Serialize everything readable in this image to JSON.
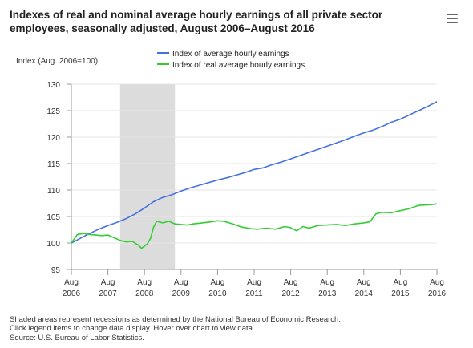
{
  "title": "Indexes of real and nominal average hourly earnings of all private sector employees, seasonally adjusted, August 2006–August 2016",
  "menu": {
    "icon": "hamburger-menu-icon"
  },
  "footnotes": [
    "Shaded areas represent recessions as determined by the National Bureau of Economic Research.",
    "Click legend items to change data display. Hover over chart to view data.",
    "Source: U.S. Bureau of Labor Statistics."
  ],
  "chart_data": {
    "type": "line",
    "title": "Indexes of real and nominal average hourly earnings of all private sector employees, seasonally adjusted, August 2006–August 2016",
    "ylabel": "Index (Aug. 2006=100)",
    "xlabel": "",
    "ylim": [
      95,
      130
    ],
    "yticks": [
      95,
      100,
      105,
      110,
      115,
      120,
      125,
      130
    ],
    "xlim": [
      "2006-08",
      "2016-08"
    ],
    "xticks": [
      {
        "month": "Aug",
        "year": "2006"
      },
      {
        "month": "Aug",
        "year": "2007"
      },
      {
        "month": "Aug",
        "year": "2008"
      },
      {
        "month": "Aug",
        "year": "2009"
      },
      {
        "month": "Aug",
        "year": "2010"
      },
      {
        "month": "Aug",
        "year": "2011"
      },
      {
        "month": "Aug",
        "year": "2012"
      },
      {
        "month": "Aug",
        "year": "2013"
      },
      {
        "month": "Aug",
        "year": "2014"
      },
      {
        "month": "Aug",
        "year": "2015"
      },
      {
        "month": "Aug",
        "year": "2016"
      }
    ],
    "grid": "horizontal",
    "legend_position": "top-center",
    "recession": {
      "start": "2007-12",
      "end": "2009-06"
    },
    "series": [
      {
        "name": "Index of average hourly earnings",
        "color": "#4572e0",
        "points": [
          [
            "2006-08",
            100.0
          ],
          [
            "2006-11",
            100.9
          ],
          [
            "2007-02",
            101.8
          ],
          [
            "2007-05",
            102.6
          ],
          [
            "2007-08",
            103.3
          ],
          [
            "2007-11",
            103.9
          ],
          [
            "2008-02",
            104.6
          ],
          [
            "2008-05",
            105.5
          ],
          [
            "2008-08",
            106.6
          ],
          [
            "2008-11",
            107.8
          ],
          [
            "2009-02",
            108.6
          ],
          [
            "2009-05",
            109.1
          ],
          [
            "2009-08",
            109.8
          ],
          [
            "2009-11",
            110.4
          ],
          [
            "2010-02",
            110.9
          ],
          [
            "2010-05",
            111.4
          ],
          [
            "2010-08",
            111.9
          ],
          [
            "2010-11",
            112.3
          ],
          [
            "2011-02",
            112.8
          ],
          [
            "2011-05",
            113.3
          ],
          [
            "2011-08",
            113.9
          ],
          [
            "2011-11",
            114.2
          ],
          [
            "2012-02",
            114.8
          ],
          [
            "2012-05",
            115.3
          ],
          [
            "2012-08",
            115.9
          ],
          [
            "2012-11",
            116.5
          ],
          [
            "2013-02",
            117.1
          ],
          [
            "2013-05",
            117.7
          ],
          [
            "2013-08",
            118.3
          ],
          [
            "2013-11",
            118.9
          ],
          [
            "2014-02",
            119.5
          ],
          [
            "2014-05",
            120.2
          ],
          [
            "2014-08",
            120.8
          ],
          [
            "2014-11",
            121.3
          ],
          [
            "2015-02",
            122.0
          ],
          [
            "2015-05",
            122.8
          ],
          [
            "2015-08",
            123.4
          ],
          [
            "2015-11",
            124.2
          ],
          [
            "2016-02",
            125.0
          ],
          [
            "2016-05",
            125.8
          ],
          [
            "2016-08",
            126.7
          ]
        ]
      },
      {
        "name": "Index of real average hourly earnings",
        "color": "#33cc33",
        "points": [
          [
            "2006-08",
            100.0
          ],
          [
            "2006-10",
            101.6
          ],
          [
            "2006-12",
            101.8
          ],
          [
            "2007-02",
            101.6
          ],
          [
            "2007-04",
            101.5
          ],
          [
            "2007-06",
            101.4
          ],
          [
            "2007-08",
            101.5
          ],
          [
            "2007-10",
            101.0
          ],
          [
            "2007-12",
            100.5
          ],
          [
            "2008-02",
            100.2
          ],
          [
            "2008-04",
            100.3
          ],
          [
            "2008-06",
            99.6
          ],
          [
            "2008-07",
            99.0
          ],
          [
            "2008-08",
            99.4
          ],
          [
            "2008-09",
            99.9
          ],
          [
            "2008-10",
            100.9
          ],
          [
            "2008-11",
            103.0
          ],
          [
            "2008-12",
            104.1
          ],
          [
            "2009-02",
            103.8
          ],
          [
            "2009-04",
            104.1
          ],
          [
            "2009-06",
            103.6
          ],
          [
            "2009-08",
            103.5
          ],
          [
            "2009-10",
            103.4
          ],
          [
            "2009-12",
            103.6
          ],
          [
            "2010-03",
            103.8
          ],
          [
            "2010-06",
            104.0
          ],
          [
            "2010-08",
            104.2
          ],
          [
            "2010-10",
            104.1
          ],
          [
            "2011-01",
            103.6
          ],
          [
            "2011-04",
            103.0
          ],
          [
            "2011-07",
            102.7
          ],
          [
            "2011-09",
            102.6
          ],
          [
            "2011-12",
            102.8
          ],
          [
            "2012-03",
            102.6
          ],
          [
            "2012-06",
            103.1
          ],
          [
            "2012-08",
            102.9
          ],
          [
            "2012-10",
            102.3
          ],
          [
            "2012-12",
            103.1
          ],
          [
            "2013-02",
            102.8
          ],
          [
            "2013-05",
            103.3
          ],
          [
            "2013-08",
            103.4
          ],
          [
            "2013-11",
            103.5
          ],
          [
            "2014-02",
            103.3
          ],
          [
            "2014-05",
            103.6
          ],
          [
            "2014-08",
            103.8
          ],
          [
            "2014-10",
            104.0
          ],
          [
            "2014-12",
            105.5
          ],
          [
            "2015-02",
            105.8
          ],
          [
            "2015-05",
            105.7
          ],
          [
            "2015-08",
            106.1
          ],
          [
            "2015-11",
            106.5
          ],
          [
            "2016-02",
            107.1
          ],
          [
            "2016-05",
            107.2
          ],
          [
            "2016-07",
            107.3
          ],
          [
            "2016-08",
            107.4
          ]
        ]
      }
    ]
  }
}
